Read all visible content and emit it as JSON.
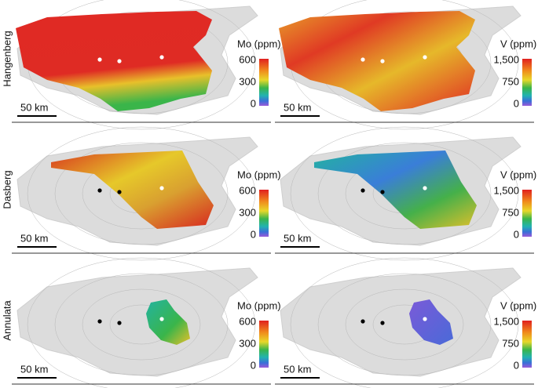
{
  "rows": [
    {
      "label": "Hangenberg",
      "panels": [
        {
          "colorbar": {
            "title": "Mo (ppm)",
            "ticks": [
              "600",
              "300",
              "0"
            ]
          },
          "scale": "50 km"
        },
        {
          "colorbar": {
            "title": "V (ppm)",
            "ticks": [
              "1,500",
              "750",
              "0"
            ]
          },
          "scale": "50 km"
        }
      ]
    },
    {
      "label": "Dasberg",
      "panels": [
        {
          "colorbar": {
            "title": "Mo (ppm)",
            "ticks": [
              "600",
              "300",
              "0"
            ]
          },
          "scale": "50 km"
        },
        {
          "colorbar": {
            "title": "V (ppm)",
            "ticks": [
              "1,500",
              "750",
              "0"
            ]
          },
          "scale": "50 km"
        }
      ]
    },
    {
      "label": "Annulata",
      "panels": [
        {
          "colorbar": {
            "title": "Mo (ppm)",
            "ticks": [
              "600",
              "300",
              "0"
            ]
          },
          "scale": "50 km"
        },
        {
          "colorbar": {
            "title": "V (ppm)",
            "ticks": [
              "1,500",
              "750",
              "0"
            ]
          },
          "scale": "50 km"
        }
      ]
    }
  ]
}
